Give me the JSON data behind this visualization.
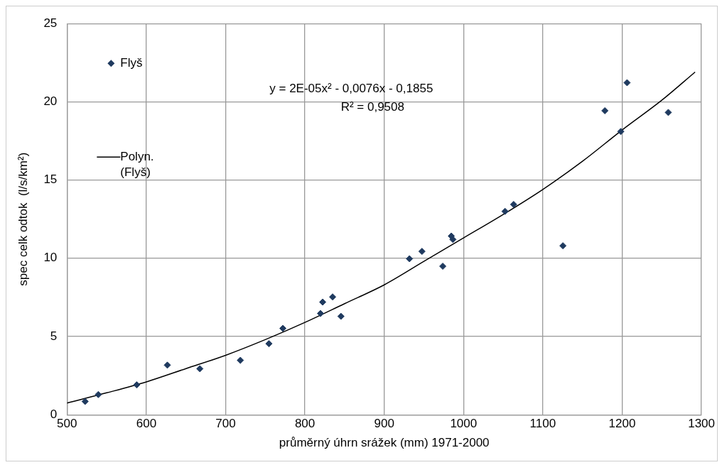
{
  "chart_data": {
    "type": "scatter",
    "xlabel": "průměrný úhrn srážek (mm) 1971-2000",
    "ylabel": "spec celk odtok  (l/s/km²)",
    "xlim": [
      500,
      1300
    ],
    "xticks": [
      500,
      600,
      700,
      800,
      900,
      1000,
      1100,
      1200,
      1300
    ],
    "ylim": [
      0,
      25
    ],
    "yticks": [
      0,
      5,
      10,
      15,
      20,
      25
    ],
    "grid": true,
    "legend": "top left",
    "marker": "diamond",
    "series": [
      {
        "name": "Flyš",
        "color": "#1f3a5f",
        "x": [
          522.8,
          539.5,
          587.9,
          626.5,
          667.5,
          718.6,
          754.6,
          772.2,
          819.6,
          822.4,
          834.9,
          845.4,
          931.8,
          947.6,
          973.8,
          984.6,
          986.6,
          1052.3,
          1063.2,
          1125.3,
          1178.2,
          1206.2,
          1198.3,
          1258.2
        ],
        "values": [
          0.85,
          1.29,
          1.91,
          3.17,
          2.94,
          3.48,
          4.54,
          5.52,
          6.47,
          7.2,
          7.53,
          6.29,
          9.97,
          10.44,
          9.49,
          11.42,
          11.2,
          13.0,
          13.44,
          10.8,
          19.43,
          21.22,
          18.1,
          19.32
        ]
      },
      {
        "name": "Polyn. (Flyš)",
        "type": "line",
        "color": "#000000",
        "marker": "none",
        "x": [
          500,
          550,
          600,
          650,
          700,
          750,
          800,
          850,
          900,
          950,
          1000,
          1050,
          1100,
          1150,
          1200,
          1250,
          1292
        ],
        "values": [
          0.75,
          1.4,
          2.1,
          2.95,
          3.8,
          4.8,
          5.9,
          7.1,
          8.3,
          9.8,
          11.3,
          12.8,
          14.4,
          16.2,
          18.2,
          20.1,
          21.9
        ]
      }
    ],
    "annotations": [
      "y = 2E-05x² - 0,0076x - 0,1855",
      "R² = 0,9508"
    ]
  }
}
